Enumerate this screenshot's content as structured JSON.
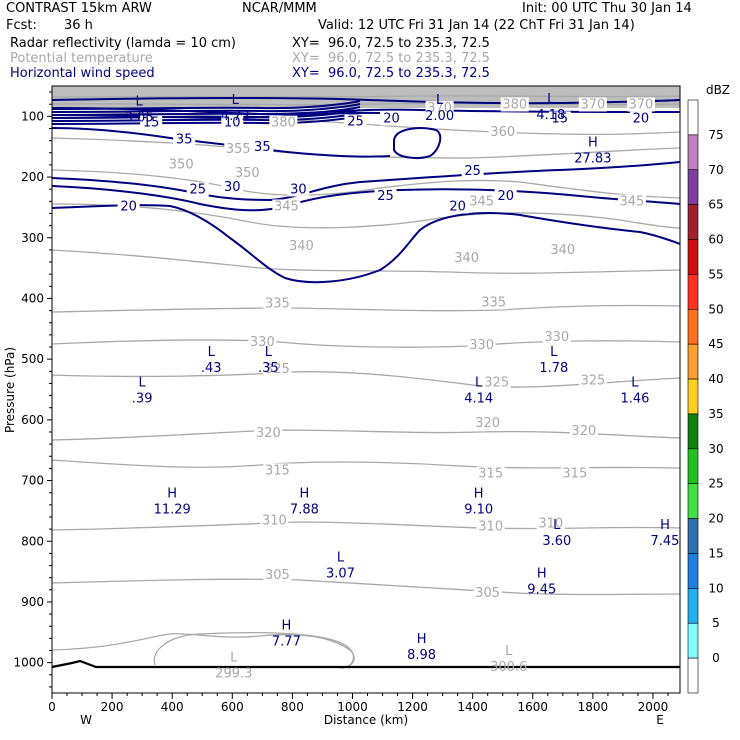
{
  "header": {
    "model": "CONTRAST 15km ARW",
    "org": "NCAR/MMM",
    "init": "Init: 00 UTC Thu 30 Jan 14",
    "fcst_label": "Fcst:",
    "fcst_value": "36 h",
    "valid": "Valid: 12 UTC Fri 31 Jan 14 (22 ChT Fri 31 Jan 14)",
    "fields": [
      {
        "name": "Radar reflectivity (lamda = 10 cm)",
        "xy": "XY=  96.0, 72.5 to 235.3, 72.5"
      },
      {
        "name": "Potential temperature",
        "xy": "XY=  96.0, 72.5 to 235.3, 72.5"
      },
      {
        "name": "Horizontal wind speed",
        "xy": "XY=  96.0, 72.5 to 235.3, 72.5"
      }
    ]
  },
  "colors": {
    "theta": "#a8a8a8",
    "wind": "#000080",
    "axis": "#000000"
  },
  "chart_data": {
    "type": "contour",
    "xlabel": "Distance (km)",
    "ylabel": "Pressure (hPa)",
    "xlim": [
      0,
      2090
    ],
    "ylim": [
      1050,
      50
    ],
    "y_scale": "linear-inverted",
    "x_ticks": [
      0,
      200,
      400,
      600,
      800,
      1000,
      1200,
      1400,
      1600,
      1800,
      2000
    ],
    "y_ticks": [
      100,
      200,
      300,
      400,
      500,
      600,
      700,
      800,
      900,
      1000
    ],
    "x_end_labels": {
      "left": "W",
      "right": "E"
    },
    "colorbar": {
      "unit": "dBZ",
      "levels": [
        0,
        5,
        10,
        15,
        20,
        25,
        30,
        35,
        40,
        45,
        50,
        55,
        60,
        65,
        70,
        75
      ],
      "colors": [
        "#ffffff",
        "#80ffff",
        "#20b0f0",
        "#2080e0",
        "#3070b0",
        "#40e040",
        "#20c020",
        "#108010",
        "#ffd020",
        "#ffa030",
        "#ff7020",
        "#ff3020",
        "#d01010",
        "#a02030",
        "#8040a0",
        "#c080c0",
        "#ffffff"
      ]
    },
    "theta_labels": [
      {
        "x": 1540,
        "p": 87,
        "text": "380"
      },
      {
        "x": 1800,
        "p": 87,
        "text": "370"
      },
      {
        "x": 1960,
        "p": 87,
        "text": "370"
      },
      {
        "x": 1290,
        "p": 93,
        "text": "370"
      },
      {
        "x": 770,
        "p": 117,
        "text": "380"
      },
      {
        "x": 1500,
        "p": 132,
        "text": "360"
      },
      {
        "x": 620,
        "p": 160,
        "text": "355"
      },
      {
        "x": 430,
        "p": 186,
        "text": "350"
      },
      {
        "x": 650,
        "p": 200,
        "text": "350"
      },
      {
        "x": 780,
        "p": 255,
        "text": "345"
      },
      {
        "x": 1430,
        "p": 247,
        "text": "345"
      },
      {
        "x": 1930,
        "p": 247,
        "text": "345"
      },
      {
        "x": 830,
        "p": 320,
        "text": "340"
      },
      {
        "x": 1380,
        "p": 340,
        "text": "340"
      },
      {
        "x": 1700,
        "p": 327,
        "text": "340"
      },
      {
        "x": 750,
        "p": 415,
        "text": "335"
      },
      {
        "x": 1470,
        "p": 413,
        "text": "335"
      },
      {
        "x": 700,
        "p": 478,
        "text": "330"
      },
      {
        "x": 1430,
        "p": 483,
        "text": "330"
      },
      {
        "x": 1680,
        "p": 470,
        "text": "330"
      },
      {
        "x": 750,
        "p": 523,
        "text": "325"
      },
      {
        "x": 1480,
        "p": 545,
        "text": "325"
      },
      {
        "x": 1800,
        "p": 542,
        "text": "325"
      },
      {
        "x": 720,
        "p": 628,
        "text": "320"
      },
      {
        "x": 1450,
        "p": 612,
        "text": "320"
      },
      {
        "x": 1770,
        "p": 625,
        "text": "320"
      },
      {
        "x": 750,
        "p": 690,
        "text": "315"
      },
      {
        "x": 1460,
        "p": 695,
        "text": "315"
      },
      {
        "x": 1740,
        "p": 695,
        "text": "315"
      },
      {
        "x": 740,
        "p": 772,
        "text": "310"
      },
      {
        "x": 1460,
        "p": 782,
        "text": "310"
      },
      {
        "x": 1660,
        "p": 777,
        "text": "310"
      },
      {
        "x": 750,
        "p": 862,
        "text": "305"
      },
      {
        "x": 1450,
        "p": 892,
        "text": "305"
      }
    ],
    "wind_labels": [
      {
        "x": 330,
        "p": 117,
        "text": "15"
      },
      {
        "x": 600,
        "p": 117,
        "text": "10"
      },
      {
        "x": 1010,
        "p": 115,
        "text": "25"
      },
      {
        "x": 1130,
        "p": 110,
        "text": "20"
      },
      {
        "x": 1690,
        "p": 110,
        "text": "15"
      },
      {
        "x": 1960,
        "p": 110,
        "text": "20"
      },
      {
        "x": 440,
        "p": 145,
        "text": "35"
      },
      {
        "x": 700,
        "p": 157,
        "text": "35"
      },
      {
        "x": 1400,
        "p": 197,
        "text": "25"
      },
      {
        "x": 600,
        "p": 223,
        "text": "30"
      },
      {
        "x": 820,
        "p": 227,
        "text": "30"
      },
      {
        "x": 485,
        "p": 227,
        "text": "25"
      },
      {
        "x": 1110,
        "p": 238,
        "text": "25"
      },
      {
        "x": 255,
        "p": 255,
        "text": "20"
      },
      {
        "x": 1350,
        "p": 255,
        "text": "20"
      },
      {
        "x": 1510,
        "p": 238,
        "text": "20"
      }
    ],
    "extrema": [
      {
        "kind": "L",
        "x": 290,
        "p": 82,
        "value": "3.05",
        "field": "wind"
      },
      {
        "kind": "L",
        "x": 610,
        "p": 80,
        "value": "4.73",
        "field": "wind"
      },
      {
        "kind": "L",
        "x": 1290,
        "p": 80,
        "value": "2.00",
        "field": "wind"
      },
      {
        "kind": "L",
        "x": 1660,
        "p": 78,
        "value": "4.18",
        "field": "wind"
      },
      {
        "kind": "H",
        "x": 1800,
        "p": 150,
        "value": "27.83",
        "field": "wind"
      },
      {
        "kind": "L",
        "x": 530,
        "p": 495,
        "value": ".43",
        "field": "wind"
      },
      {
        "kind": "L",
        "x": 720,
        "p": 495,
        "value": ".35",
        "field": "wind"
      },
      {
        "kind": "L",
        "x": 300,
        "p": 545,
        "value": ".39",
        "field": "wind"
      },
      {
        "kind": "L",
        "x": 1420,
        "p": 545,
        "value": "4.14",
        "field": "wind"
      },
      {
        "kind": "L",
        "x": 1670,
        "p": 495,
        "value": "1.78",
        "field": "wind"
      },
      {
        "kind": "L",
        "x": 1940,
        "p": 545,
        "value": "1.46",
        "field": "wind"
      },
      {
        "kind": "H",
        "x": 400,
        "p": 728,
        "value": "11.29",
        "field": "wind"
      },
      {
        "kind": "H",
        "x": 840,
        "p": 728,
        "value": "7.88",
        "field": "wind"
      },
      {
        "kind": "H",
        "x": 1420,
        "p": 728,
        "value": "9.10",
        "field": "wind"
      },
      {
        "kind": "L",
        "x": 1680,
        "p": 780,
        "value": "3.60",
        "field": "wind"
      },
      {
        "kind": "H",
        "x": 2040,
        "p": 780,
        "value": "7.45",
        "field": "wind"
      },
      {
        "kind": "L",
        "x": 960,
        "p": 833,
        "value": "3.07",
        "field": "wind"
      },
      {
        "kind": "H",
        "x": 1630,
        "p": 860,
        "value": "9.45",
        "field": "wind"
      },
      {
        "kind": "H",
        "x": 780,
        "p": 945,
        "value": "7.77",
        "field": "wind"
      },
      {
        "kind": "H",
        "x": 1230,
        "p": 968,
        "value": "8.98",
        "field": "wind"
      },
      {
        "kind": "L",
        "x": 605,
        "p": 998,
        "value": "299.3",
        "field": "theta"
      },
      {
        "kind": "L",
        "x": 1520,
        "p": 987,
        "value": "300.6",
        "field": "theta"
      }
    ]
  }
}
